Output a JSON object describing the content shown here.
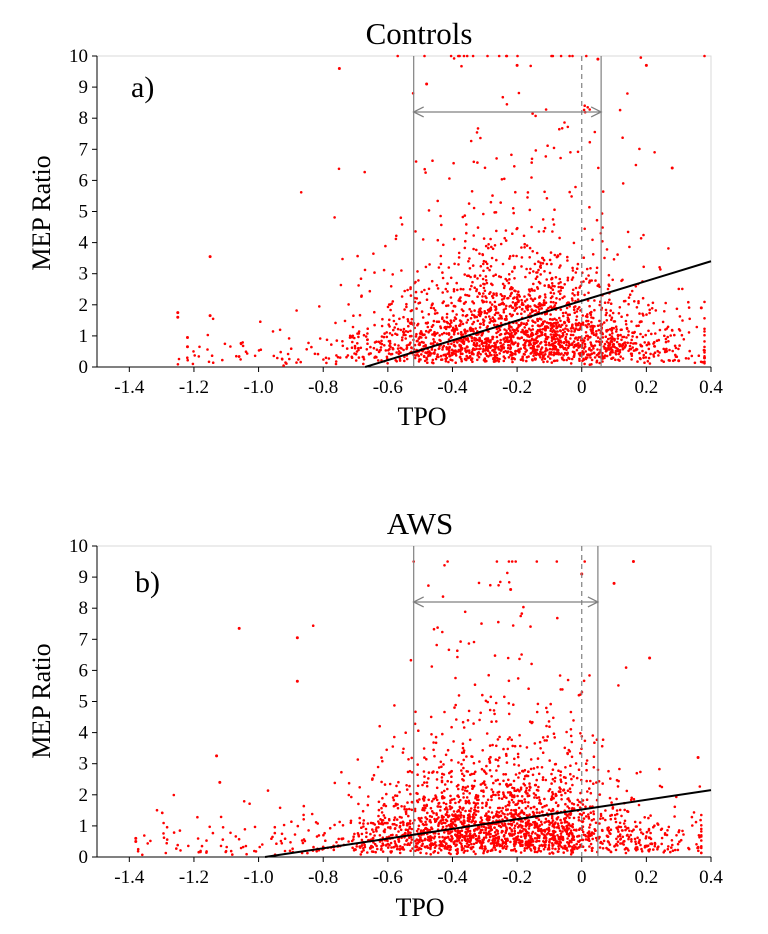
{
  "figure": {
    "panels": [
      {
        "title": "Controls",
        "panel_label": "a)",
        "xlabel": "TPO",
        "ylabel": "MEP Ratio"
      },
      {
        "title": "AWS",
        "panel_label": "b)",
        "xlabel": "TPO",
        "ylabel": "MEP Ratio"
      }
    ]
  },
  "chart_data": [
    {
      "type": "scatter",
      "title": "Controls",
      "panel_label": "a)",
      "xlabel": "TPO",
      "ylabel": "MEP Ratio",
      "xlim": [
        -1.5,
        0.4
      ],
      "ylim": [
        0,
        10
      ],
      "xticks": [
        "-1.4",
        "-1.2",
        "-1.0",
        "-0.8",
        "-0.6",
        "-0.4",
        "-0.2",
        "0",
        "0.2",
        "0.4"
      ],
      "yticks": [
        "0",
        "1",
        "2",
        "3",
        "4",
        "5",
        "6",
        "7",
        "8",
        "9",
        "10"
      ],
      "grid": false,
      "point_color": "#ff0000",
      "approx_point_count": 2400,
      "point_cloud": {
        "x_range": [
          -1.25,
          0.38
        ],
        "x_mode": -0.2,
        "y_median": 0.9,
        "y_max": 10
      },
      "sample_points": [
        {
          "x": -1.25,
          "y": 1.75
        },
        {
          "x": -1.25,
          "y": 1.6
        },
        {
          "x": -1.22,
          "y": 0.95
        },
        {
          "x": -1.22,
          "y": 0.65
        },
        {
          "x": -1.15,
          "y": 3.55
        },
        {
          "x": -1.15,
          "y": 1.65
        },
        {
          "x": -0.75,
          "y": 9.6
        },
        {
          "x": -0.48,
          "y": 9.1
        },
        {
          "x": -0.2,
          "y": 9.7
        },
        {
          "x": 0.05,
          "y": 9.9
        },
        {
          "x": 0.2,
          "y": 9.7
        },
        {
          "x": 0.28,
          "y": 6.4
        },
        {
          "x": 0.37,
          "y": 1.9
        },
        {
          "x": 0.3,
          "y": 0.2
        }
      ],
      "regression_line": {
        "x": [
          -0.67,
          0.4
        ],
        "y": [
          0,
          3.4
        ],
        "color": "#000000"
      },
      "vertical_lines": [
        {
          "x": -0.52,
          "style": "solid",
          "color": "#808080"
        },
        {
          "x": 0.06,
          "style": "solid",
          "color": "#808080"
        },
        {
          "x": 0,
          "style": "dashed",
          "color": "#808080"
        }
      ],
      "interval_arrow": {
        "x": [
          -0.52,
          0.06
        ],
        "y": 8.2,
        "style": "double-headed",
        "color": "#808080"
      }
    },
    {
      "type": "scatter",
      "title": "AWS",
      "panel_label": "b)",
      "xlabel": "TPO",
      "ylabel": "MEP Ratio",
      "xlim": [
        -1.5,
        0.4
      ],
      "ylim": [
        0,
        10
      ],
      "xticks": [
        "-1.4",
        "-1.2",
        "-1.0",
        "-0.8",
        "-0.6",
        "-0.4",
        "-0.2",
        "0",
        "0.2",
        "0.4"
      ],
      "yticks": [
        "0",
        "1",
        "2",
        "3",
        "4",
        "5",
        "6",
        "7",
        "8",
        "9",
        "10"
      ],
      "grid": false,
      "point_color": "#ff0000",
      "approx_point_count": 2400,
      "point_cloud": {
        "x_range": [
          -1.38,
          0.37
        ],
        "x_mode": -0.25,
        "y_median": 0.8,
        "y_max": 9.5
      },
      "sample_points": [
        {
          "x": -1.38,
          "y": 0.6
        },
        {
          "x": -1.38,
          "y": 0.5
        },
        {
          "x": -1.13,
          "y": 3.25
        },
        {
          "x": -1.12,
          "y": 2.4
        },
        {
          "x": -1.06,
          "y": 7.35
        },
        {
          "x": -0.88,
          "y": 7.05
        },
        {
          "x": -0.88,
          "y": 5.65
        },
        {
          "x": -0.22,
          "y": 8.6
        },
        {
          "x": 0,
          "y": 9.1
        },
        {
          "x": 0.1,
          "y": 8.8
        },
        {
          "x": 0.16,
          "y": 9.5
        },
        {
          "x": 0.21,
          "y": 6.4
        },
        {
          "x": 0.36,
          "y": 3.2
        },
        {
          "x": 0.36,
          "y": 0.3
        }
      ],
      "regression_line": {
        "x": [
          -0.98,
          0.4
        ],
        "y": [
          0,
          2.15
        ],
        "color": "#000000"
      },
      "vertical_lines": [
        {
          "x": -0.52,
          "style": "solid",
          "color": "#808080"
        },
        {
          "x": 0.05,
          "style": "solid",
          "color": "#808080"
        },
        {
          "x": 0,
          "style": "dashed",
          "color": "#808080"
        }
      ],
      "interval_arrow": {
        "x": [
          -0.52,
          0.05
        ],
        "y": 8.2,
        "style": "double-headed",
        "color": "#808080"
      }
    }
  ]
}
